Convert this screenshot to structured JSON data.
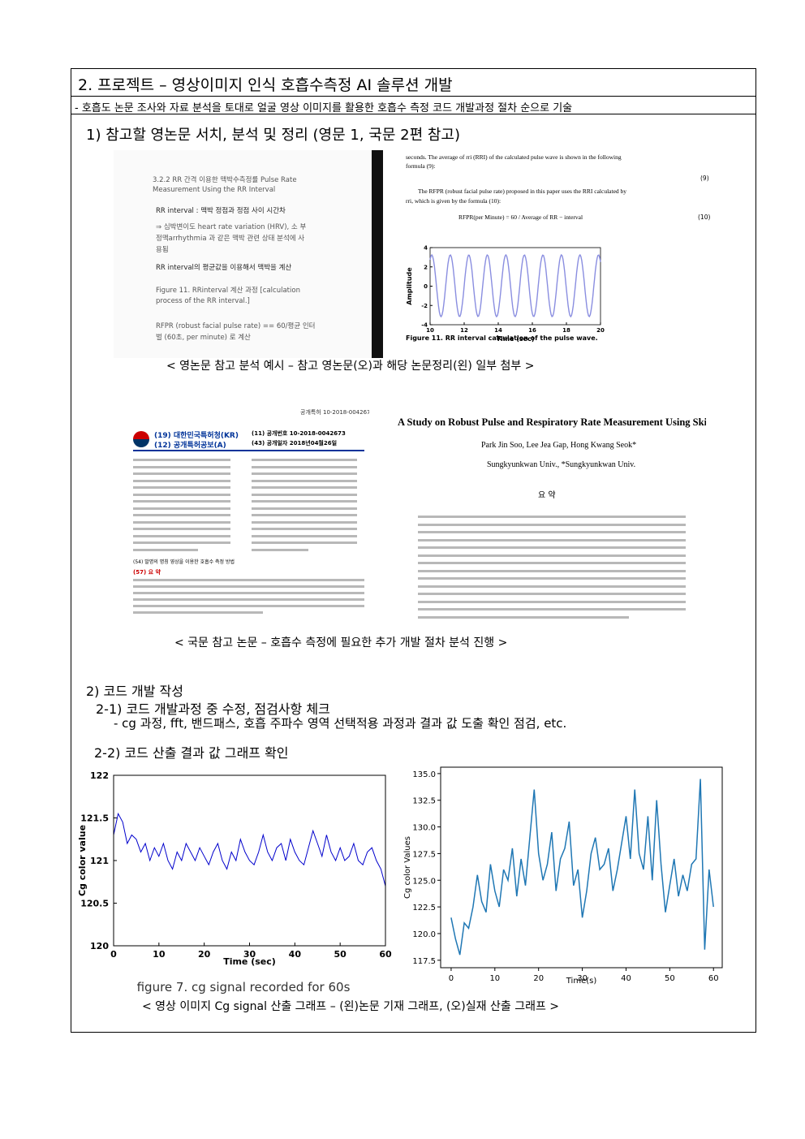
{
  "header": {
    "title": "2. 프로젝트 – 영상이미지 인식 호흡수측정 AI 솔루션 개발",
    "summary": "- 호흡도 논문 조사와 자료 분석을 토대로 얼굴 영상 이미지를 활용한 호흡수 측정 코드 개발과정 절차 순으로 기술"
  },
  "section1": {
    "heading": "1) 참고할 영논문 서치, 분석 및 정리 (영문 1, 국문 2편 참고)",
    "figure1": {
      "note": [
        "3.2.2  RR 간격 이용한 맥박수측정률  Pulse Rate",
        "Measurement Using the RR Interval",
        "RR interval : 맥박 정점과 정점 사이 시간차",
        "⇒ 심박변이도 heart rate variation (HRV),  소 부",
        "정맥arrhythmia 과 같은 맥박 관련 상태 분석에 사",
        "용됨",
        "RR interval의 평균값을 이용해서 맥박을 계산",
        "Figure 11.  RRinterval 계산 과정  [calculation",
        "process of the RR interval.]",
        "RFPR (robust facial pulse rate)  ==  60/평균 인터",
        "벌 (60초, per minute) 로 계산"
      ],
      "paper": {
        "lines": [
          "seconds. The average of rri (RRI) of the calculated pulse wave is shown in the following",
          "formula (9):",
          "The RFPR (robust facial pulse rate) proposed in this paper uses the RRI calculated by",
          "rri, which is given by the formula (10):",
          "RFPR(per Minute) = 60 / Average of RR − interval"
        ],
        "equation_numbers": [
          "(9)",
          "(10)"
        ],
        "plot": {
          "ylabel": "Amplitude",
          "xlabel": "Time (sec)",
          "xlim": [
            10,
            20
          ],
          "ylim": [
            -4,
            4
          ],
          "xticks": [
            10,
            12,
            14,
            16,
            18,
            20
          ],
          "yticks": [
            -4,
            -2,
            0,
            2,
            4
          ]
        },
        "caption": "Figure 11. RR interval calculation of the pulse wave."
      },
      "caption": "< 영논문 참고 분석 예시 – 참고 영논문(오)과 해당 논문정리(왼) 일부 첨부 >"
    },
    "figure2": {
      "patent": {
        "top": "공개특허 10-2018-0042673",
        "office": "(19) 대한민국특허청(KR)",
        "kind": "(12) 공개특허공보(A)",
        "number": "(11) 공개번호   10-2018-0042673",
        "date": "(43) 공개일자   2018년04월26일",
        "title": "(54) 발명의 명칭 영상을 이용한 호흡수 측정 방법",
        "abstract": "(57) 요 약"
      },
      "paper": {
        "title": "A Study on Robust Pulse and Respiratory Rate Measurement Using Skin Image",
        "authors": "Park Jin Soo, Lee Jea Gap, Hong Kwang Seok*",
        "affiliation": "Sungkyunkwan Univ., *Sungkyunkwan Univ.",
        "abstract_heading": "요 약"
      },
      "caption": "< 국문 참고 논문 – 호흡수 측정에 필요한 추가 개발 절차 분석 진행 >"
    }
  },
  "section2": {
    "heading": "2) 코드 개발 작성",
    "sub1": {
      "heading": "2-1) 코드 개발과정 중 수정, 점검사항 체크",
      "item": "- cg 과정, fft, 밴드패스, 호흡 주파수 영역 선택적용 과정과 결과 값 도출 확인 점검, etc."
    },
    "sub2": {
      "heading": "2-2) 코드 산출 결과 값 그래프 확인"
    },
    "figure3": {
      "charts": [
        {
          "type": "line",
          "xlabel": "Time (sec)",
          "ylabel": "Cg color value",
          "caption": "figure 7. cg signal recorded for 60s",
          "color": "#0000cc",
          "frame": "box",
          "xlim": [
            0,
            60
          ],
          "ylim": [
            120,
            122
          ],
          "xticks": [
            0,
            10,
            20,
            30,
            40,
            50,
            60
          ],
          "yticks": [
            120,
            120.5,
            121,
            121.5,
            122
          ],
          "x": [
            0,
            1,
            2,
            3,
            4,
            5,
            6,
            7,
            8,
            9,
            10,
            11,
            12,
            13,
            14,
            15,
            16,
            17,
            18,
            19,
            20,
            21,
            22,
            23,
            24,
            25,
            26,
            27,
            28,
            29,
            30,
            31,
            32,
            33,
            34,
            35,
            36,
            37,
            38,
            39,
            40,
            41,
            42,
            43,
            44,
            45,
            46,
            47,
            48,
            49,
            50,
            51,
            52,
            53,
            54,
            55,
            56,
            57,
            58,
            59,
            60
          ],
          "values": [
            121.3,
            121.55,
            121.45,
            121.2,
            121.3,
            121.25,
            121.1,
            121.2,
            121.0,
            121.15,
            121.05,
            121.2,
            121.0,
            120.9,
            121.1,
            121.0,
            121.2,
            121.1,
            121.0,
            121.15,
            121.05,
            120.95,
            121.1,
            121.2,
            121.0,
            120.9,
            121.1,
            121.0,
            121.25,
            121.1,
            121.0,
            120.95,
            121.1,
            121.3,
            121.1,
            121.0,
            121.15,
            121.2,
            121.0,
            121.25,
            121.1,
            121.0,
            120.95,
            121.15,
            121.35,
            121.2,
            121.05,
            121.3,
            121.1,
            121.0,
            121.15,
            121.0,
            121.05,
            121.2,
            121.0,
            120.95,
            121.1,
            121.15,
            121.0,
            120.9,
            120.7
          ]
        },
        {
          "type": "line",
          "xlabel": "Time(s)",
          "ylabel": "Cg color Values",
          "color": "#1f77b4",
          "frame": "box",
          "xlim": [
            -2.4,
            62
          ],
          "ylim": [
            116.8,
            135.6
          ],
          "xticks": [
            0,
            10,
            20,
            30,
            40,
            50,
            60
          ],
          "yticks": [
            117.5,
            {
              "value": 120,
              "label": "120.0"
            },
            122.5,
            {
              "value": 125,
              "label": "125.0"
            },
            127.5,
            {
              "value": 130,
              "label": "130.0"
            },
            132.5,
            {
              "value": 135,
              "label": "135.0"
            }
          ],
          "x": [
            0,
            1,
            2,
            3,
            4,
            5,
            6,
            7,
            8,
            9,
            10,
            11,
            12,
            13,
            14,
            15,
            16,
            17,
            18,
            19,
            20,
            21,
            22,
            23,
            24,
            25,
            26,
            27,
            28,
            29,
            30,
            31,
            32,
            33,
            34,
            35,
            36,
            37,
            38,
            39,
            40,
            41,
            42,
            43,
            44,
            45,
            46,
            47,
            48,
            49,
            50,
            51,
            52,
            53,
            54,
            55,
            56,
            57,
            58,
            59,
            60
          ],
          "values": [
            121.5,
            119.5,
            118.0,
            121.0,
            120.5,
            122.5,
            125.5,
            123.0,
            122.0,
            126.5,
            124.0,
            122.5,
            126.0,
            125.0,
            128.0,
            123.5,
            127.0,
            124.5,
            129.0,
            133.5,
            127.5,
            125.0,
            126.5,
            129.5,
            124.0,
            127.0,
            128.0,
            130.5,
            124.5,
            126.0,
            121.5,
            124.0,
            127.5,
            129.0,
            126.0,
            126.5,
            128.0,
            124.0,
            126.0,
            128.5,
            131.0,
            127.0,
            133.5,
            127.5,
            126.0,
            131.0,
            125.0,
            132.5,
            126.5,
            122.0,
            124.5,
            127.0,
            123.5,
            125.5,
            124.0,
            126.5,
            127.0,
            134.5,
            118.5,
            126.0,
            122.5
          ]
        }
      ],
      "caption": "< 영상 이미지 Cg signal 산출 그래프 – (왼)논문 기재 그래프, (오)실재 산출 그래프 >"
    }
  }
}
